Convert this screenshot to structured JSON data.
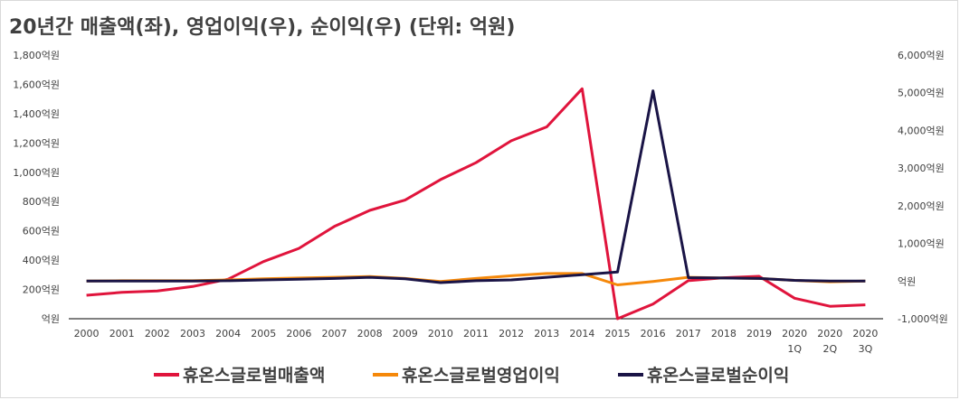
{
  "chart_data": {
    "type": "line",
    "title": "20년간 매출액(좌), 영업이익(우), 순이익(우) (단위: 억원)",
    "categories": [
      [
        "2000"
      ],
      [
        "2001"
      ],
      [
        "2002"
      ],
      [
        "2003"
      ],
      [
        "2004"
      ],
      [
        "2005"
      ],
      [
        "2006"
      ],
      [
        "2007"
      ],
      [
        "2008"
      ],
      [
        "2009"
      ],
      [
        "2010"
      ],
      [
        "2011"
      ],
      [
        "2012"
      ],
      [
        "2013"
      ],
      [
        "2014"
      ],
      [
        "2015"
      ],
      [
        "2016"
      ],
      [
        "2017"
      ],
      [
        "2018"
      ],
      [
        "2019"
      ],
      [
        "2020",
        "1Q"
      ],
      [
        "2020",
        "2Q"
      ],
      [
        "2020",
        "3Q"
      ]
    ],
    "y_left": {
      "min": 0,
      "max": 1800,
      "step": 200,
      "tick_labels": [
        "억원",
        "200억원",
        "400억원",
        "600억원",
        "800억원",
        "1,000억원",
        "1,200억원",
        "1,400억원",
        "1,600억원",
        "1,800억원"
      ]
    },
    "y_right": {
      "min": -1000,
      "max": 6000,
      "step": 1000,
      "tick_labels": [
        "-1,000억원",
        "억원",
        "1,000억원",
        "2,000억원",
        "3,000억원",
        "4,000억원",
        "5,000억원",
        "6,000억원"
      ]
    },
    "series": [
      {
        "name": "휴온스글로벌매출액",
        "axis": "left",
        "color": "#e0143c",
        "values": [
          160,
          180,
          190,
          220,
          270,
          390,
          480,
          630,
          740,
          810,
          950,
          1065,
          1215,
          1310,
          1570,
          0,
          100,
          260,
          280,
          290,
          140,
          85,
          95
        ]
      },
      {
        "name": "휴온스글로벌영업이익",
        "axis": "right",
        "color": "#f5880a",
        "values": [
          0,
          10,
          10,
          10,
          30,
          60,
          80,
          100,
          120,
          70,
          -10,
          70,
          140,
          200,
          200,
          -100,
          -10,
          100,
          80,
          70,
          20,
          -20,
          0
        ]
      },
      {
        "name": "휴온스글로벌순이익",
        "axis": "right",
        "color": "#1a1446",
        "values": [
          0,
          0,
          0,
          0,
          10,
          30,
          50,
          70,
          100,
          60,
          -40,
          10,
          30,
          100,
          170,
          240,
          5050,
          90,
          80,
          70,
          20,
          0,
          0
        ]
      }
    ]
  }
}
